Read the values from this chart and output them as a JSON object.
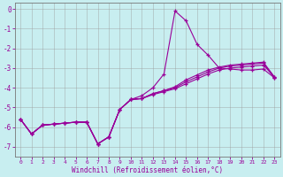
{
  "xlabel": "Windchill (Refroidissement éolien,°C)",
  "bg_color": "#c8eef0",
  "line_color": "#990099",
  "grid_color": "#999999",
  "xlim": [
    -0.5,
    23.5
  ],
  "ylim": [
    -7.5,
    0.3
  ],
  "yticks": [
    0,
    -1,
    -2,
    -3,
    -4,
    -5,
    -6,
    -7
  ],
  "xticks": [
    0,
    1,
    2,
    3,
    4,
    5,
    6,
    7,
    8,
    9,
    10,
    11,
    12,
    13,
    14,
    15,
    16,
    17,
    18,
    19,
    20,
    21,
    22,
    23
  ],
  "series": [
    {
      "x": [
        0,
        1,
        2,
        3,
        4,
        5,
        6,
        7,
        8,
        9,
        10,
        11,
        12,
        13,
        14,
        15,
        16,
        17,
        18,
        19,
        20,
        21,
        22,
        23
      ],
      "y": [
        -5.6,
        -6.35,
        -5.9,
        -5.85,
        -5.8,
        -5.75,
        -5.75,
        -6.85,
        -6.5,
        -5.1,
        -4.6,
        -4.4,
        -4.0,
        -3.3,
        -0.1,
        -0.6,
        -1.8,
        -2.35,
        -3.0,
        -3.05,
        -3.1,
        -3.1,
        -3.05,
        -3.5
      ]
    },
    {
      "x": [
        0,
        1,
        2,
        3,
        4,
        5,
        6,
        7,
        8,
        9,
        10,
        11,
        12,
        13,
        14,
        15,
        16,
        17,
        18,
        19,
        20,
        21,
        22,
        23
      ],
      "y": [
        -5.6,
        -6.35,
        -5.9,
        -5.85,
        -5.8,
        -5.75,
        -5.75,
        -6.85,
        -6.5,
        -5.1,
        -4.6,
        -4.55,
        -4.3,
        -4.15,
        -4.0,
        -3.7,
        -3.45,
        -3.2,
        -3.0,
        -2.9,
        -2.85,
        -2.8,
        -2.75,
        -3.5
      ]
    },
    {
      "x": [
        0,
        1,
        2,
        3,
        4,
        5,
        6,
        7,
        8,
        9,
        10,
        11,
        12,
        13,
        14,
        15,
        16,
        17,
        18,
        19,
        20,
        21,
        22,
        23
      ],
      "y": [
        -5.6,
        -6.35,
        -5.9,
        -5.85,
        -5.8,
        -5.75,
        -5.75,
        -6.85,
        -6.5,
        -5.1,
        -4.6,
        -4.55,
        -4.3,
        -4.15,
        -3.95,
        -3.6,
        -3.35,
        -3.1,
        -2.95,
        -2.85,
        -2.8,
        -2.75,
        -2.7,
        -3.45
      ]
    },
    {
      "x": [
        0,
        1,
        2,
        3,
        4,
        5,
        6,
        7,
        8,
        9,
        10,
        11,
        12,
        13,
        14,
        15,
        16,
        17,
        18,
        19,
        20,
        21,
        22,
        23
      ],
      "y": [
        -5.6,
        -6.35,
        -5.9,
        -5.85,
        -5.8,
        -5.75,
        -5.75,
        -6.85,
        -6.5,
        -5.1,
        -4.6,
        -4.55,
        -4.35,
        -4.2,
        -4.05,
        -3.8,
        -3.55,
        -3.3,
        -3.1,
        -3.0,
        -2.95,
        -2.9,
        -2.85,
        -3.45
      ]
    }
  ]
}
